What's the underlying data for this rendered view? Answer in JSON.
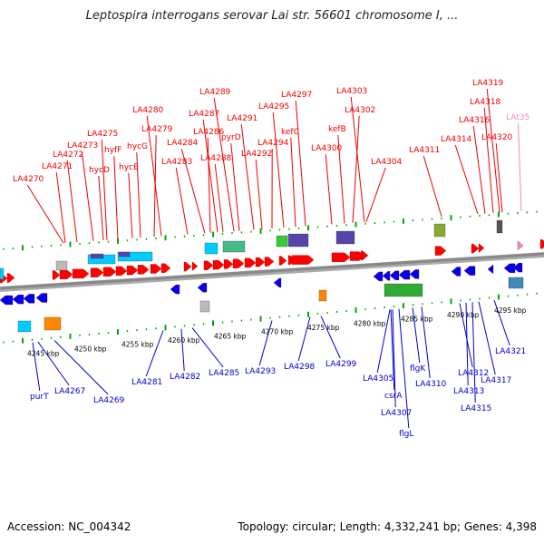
{
  "title": "Leptospira interrogans serovar Lai str. 56601 chromosome I, ...",
  "footer": {
    "accession": "Accession: NC_004342",
    "summary": "Topology: circular; Length: 4,332,241 bp; Genes: 4,398"
  },
  "colors": {
    "forward_label": "#ee0000",
    "reverse_label": "#0000cc",
    "rna_label": "#ee88cc",
    "forward_gene": "#ff0000",
    "reverse_gene": "#0000ee",
    "backbone": "#888888",
    "tick": "#00aa00"
  },
  "scale_ticks": [
    {
      "label": "4245 kbp"
    },
    {
      "label": "4250 kbp"
    },
    {
      "label": "4255 kbp"
    },
    {
      "label": "4260 kbp"
    },
    {
      "label": "4265 kbp"
    },
    {
      "label": "4270 kbp"
    },
    {
      "label": "4275 kbp"
    },
    {
      "label": "4280 kbp"
    },
    {
      "label": "4285 kbp"
    },
    {
      "label": "4290 kbp"
    },
    {
      "label": "4295 kbp"
    }
  ],
  "top_labels": [
    "LA4270",
    "LA4271",
    "LA4272",
    "LA4273",
    "LA4275",
    "hycD",
    "hyfF",
    "hycE",
    "hycG",
    "LA4279",
    "LA4280",
    "LA4283",
    "LA4284",
    "LA4286",
    "LA4287",
    "LA4288",
    "LA4289",
    "pyrD",
    "LA4291",
    "LA4292",
    "LA4294",
    "LA4295",
    "kefC",
    "LA4297",
    "LA4300",
    "kefB",
    "LA4302",
    "LA4303",
    "LA4304",
    "LA4311",
    "LA4314",
    "LA4316",
    "LA4318",
    "LA4319",
    "LA4320",
    "LAt35"
  ],
  "bottom_labels": [
    "purT",
    "LA4267",
    "LA4269",
    "LA4281",
    "LA4282",
    "LA4285",
    "LA4293",
    "LA4298",
    "LA4299",
    "LA4305",
    "csrA",
    "LA4307",
    "flgL",
    "flgK",
    "LA4310",
    "LA4312",
    "LA4313",
    "LA4315",
    "LA4317",
    "LA4321"
  ]
}
